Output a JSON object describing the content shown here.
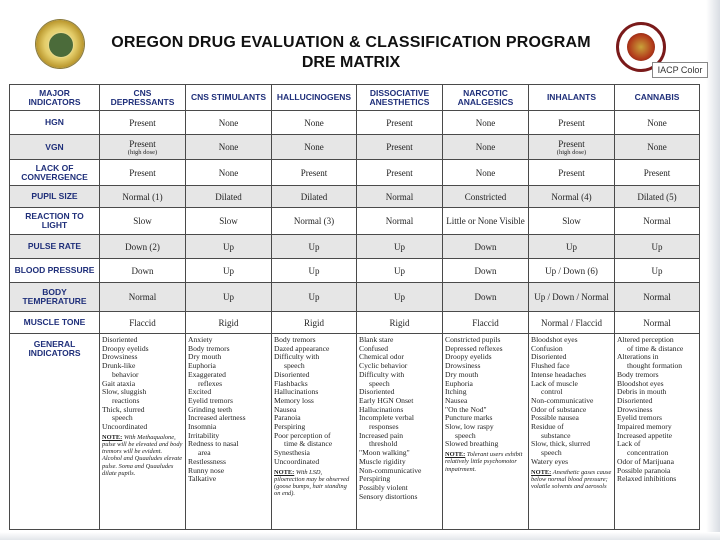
{
  "header": {
    "title": "OREGON DRUG EVALUATION & CLASSIFICATION PROGRAM",
    "subtitle": "DRE MATRIX",
    "badge_text": "IACP Color"
  },
  "colors": {
    "header_text": "#1f2f7a",
    "shade": "#e6e6e6",
    "border": "#4a4a4a"
  },
  "columns": [
    "MAJOR INDICATORS",
    "CNS DEPRESSANTS",
    "CNS STIMULANTS",
    "HALLUCINOGENS",
    "DISSOCIATIVE ANESTHETICS",
    "NARCOTIC ANALGESICS",
    "INHALANTS",
    "CANNABIS"
  ],
  "rows": {
    "hgn": {
      "label": "HGN",
      "cells": [
        "Present",
        "None",
        "None",
        "Present",
        "None",
        "Present",
        "None"
      ]
    },
    "vgn": {
      "label": "VGN",
      "cells": [
        "Present",
        "None",
        "None",
        "Present",
        "None",
        "Present",
        "None"
      ],
      "note_depressants": "(high dose)",
      "note_inhalants": "(high dose)"
    },
    "loc": {
      "label": "LACK OF CONVERGENCE",
      "cells": [
        "Present",
        "None",
        "Present",
        "Present",
        "None",
        "Present",
        "Present"
      ]
    },
    "pupil": {
      "label": "PUPIL SIZE",
      "cells": [
        "Normal (1)",
        "Dilated",
        "Dilated",
        "Normal",
        "Constricted",
        "Normal (4)",
        "Dilated (5)"
      ]
    },
    "reaction": {
      "label": "REACTION TO LIGHT",
      "cells": [
        "Slow",
        "Slow",
        "Normal (3)",
        "Normal",
        "Little or None Visible",
        "Slow",
        "Normal"
      ]
    },
    "pulse": {
      "label": "PULSE RATE",
      "cells": [
        "Down (2)",
        "Up",
        "Up",
        "Up",
        "Down",
        "Up",
        "Up"
      ]
    },
    "bp": {
      "label": "BLOOD PRESSURE",
      "cells": [
        "Down",
        "Up",
        "Up",
        "Up",
        "Down",
        "Up / Down (6)",
        "Up"
      ]
    },
    "temp": {
      "label": "BODY TEMPERATURE",
      "cells": [
        "Normal",
        "Up",
        "Up",
        "Up",
        "Down",
        "Up / Down / Normal",
        "Normal"
      ]
    },
    "muscle": {
      "label": "MUSCLE TONE",
      "cells": [
        "Flaccid",
        "Rigid",
        "Rigid",
        "Rigid",
        "Flaccid",
        "Normal / Flaccid",
        "Normal"
      ]
    }
  },
  "general": {
    "label": "GENERAL INDICATORS",
    "depressants": [
      "Disoriented",
      "Droopy eyelids",
      "Drowsiness",
      "Drunk-like",
      "behavior",
      "Gait ataxia",
      "Slow, sluggish",
      "reactions",
      "Thick, slurred",
      "speech",
      "Uncoordinated"
    ],
    "depressants_note_label": "NOTE:",
    "depressants_note": "With Methaqualone, pulse will be elevated and body tremors will be evident. Alcohol and Quaaludes elevate pulse. Soma and Quaaludes dilate pupils.",
    "stimulants": [
      "Anxiety",
      "Body tremors",
      "Dry mouth",
      "Euphoria",
      "Exaggerated",
      "reflexes",
      "Excited",
      "Eyelid tremors",
      "Grinding teeth",
      "Increased alertness",
      "Insomnia",
      "Irritability",
      "Redness to nasal",
      "area",
      "Restlessness",
      "Runny nose",
      "Talkative"
    ],
    "hallucinogens": [
      "Body tremors",
      "Dazed appearance",
      "Difficulty with",
      "speech",
      "Disoriented",
      "Flashbacks",
      "Hallucinations",
      "Memory loss",
      "Nausea",
      "Paranoia",
      "Perspiring",
      "Poor perception of",
      "time & distance",
      "Synesthesia",
      "Uncoordinated"
    ],
    "hallucinogens_note_label": "NOTE:",
    "hallucinogens_note": "With LSD, piloerection may be observed (goose bumps, hair standing on end).",
    "dissociative": [
      "Blank stare",
      "Confused",
      "Chemical odor",
      "Cyclic behavior",
      "Difficulty with",
      "speech",
      "Disoriented",
      "Early HGN Onset",
      "Hallucinations",
      "Incomplete verbal",
      "responses",
      "Increased pain",
      "threshold",
      "\"Moon walking\"",
      "Muscle rigidity",
      "Non-communicative",
      "Perspiring",
      "Possibly violent",
      "Sensory distortions"
    ],
    "narcotic": [
      "Constricted pupils",
      "Depressed reflexes",
      "Droopy eyelids",
      "Drowsiness",
      "Dry mouth",
      "Euphoria",
      "Itching",
      "Nausea",
      "\"On the Nod\"",
      "Puncture marks",
      "Slow, low raspy",
      "speech",
      "Slowed breathing"
    ],
    "narcotic_note_label": "NOTE:",
    "narcotic_note": "Tolerant users exhibit relatively little psychomotor impairment.",
    "inhalants": [
      "Bloodshot eyes",
      "Confusion",
      "Disoriented",
      "Flushed face",
      "Intense headaches",
      "Lack of muscle",
      "control",
      "Non-communicative",
      "Odor of substance",
      "Possible nausea",
      "Residue of",
      "substance",
      "Slow, thick, slurred",
      "speech",
      "Watery eyes"
    ],
    "inhalants_note_label": "NOTE:",
    "inhalants_note": "Anesthetic gases cause below normal blood pressure; volatile solvents and aerosols",
    "cannabis": [
      "Altered perception",
      "of time & distance",
      "Alterations in",
      "thought formation",
      "Body tremors",
      "Bloodshot eyes",
      "Debris in mouth",
      "Disoriented",
      "Drowsiness",
      "Eyelid tremors",
      "Impaired memory",
      "Increased appetite",
      "Lack of",
      "concentration",
      "Odor of Marijuana",
      "Possible paranoia",
      "Relaxed inhibitions"
    ]
  }
}
